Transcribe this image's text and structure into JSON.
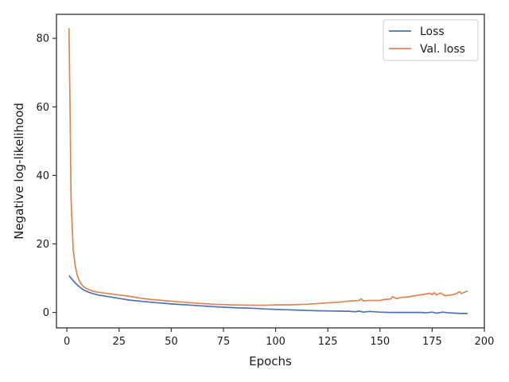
{
  "chart_data": {
    "type": "line",
    "title": "",
    "xlabel": "Epochs",
    "ylabel": "Negative log-likelihood",
    "xlim": [
      -5,
      200
    ],
    "ylim": [
      -4.5,
      87
    ],
    "xticks": [
      0,
      25,
      50,
      75,
      100,
      125,
      150,
      175,
      200
    ],
    "yticks": [
      0,
      20,
      40,
      60,
      80
    ],
    "grid": false,
    "legend_position": "top-right",
    "series": [
      {
        "name": "Loss",
        "color": "#4c72b0",
        "x": [
          1,
          2,
          3,
          4,
          5,
          6,
          7,
          8,
          10,
          12,
          15,
          20,
          25,
          30,
          40,
          50,
          60,
          70,
          80,
          90,
          95,
          100,
          105,
          110,
          115,
          120,
          125,
          130,
          135,
          138,
          140,
          142,
          145,
          150,
          155,
          160,
          165,
          170,
          172,
          175,
          177,
          180,
          183,
          186,
          189,
          192
        ],
        "y": [
          10.8,
          10.0,
          9.3,
          8.6,
          8.0,
          7.5,
          7.0,
          6.6,
          6.0,
          5.6,
          5.1,
          4.6,
          4.1,
          3.6,
          3.0,
          2.5,
          2.1,
          1.7,
          1.4,
          1.2,
          1.0,
          0.9,
          0.8,
          0.7,
          0.6,
          0.5,
          0.45,
          0.4,
          0.35,
          0.2,
          0.4,
          0.1,
          0.3,
          0.1,
          0.0,
          0.0,
          0.0,
          0.0,
          -0.1,
          0.1,
          -0.2,
          0.1,
          -0.1,
          -0.2,
          -0.3,
          -0.3
        ]
      },
      {
        "name": "Val. loss",
        "color": "#dd8452",
        "x": [
          1,
          1.5,
          2,
          3,
          4,
          5,
          6,
          7,
          8,
          10,
          12,
          15,
          20,
          25,
          30,
          35,
          40,
          50,
          60,
          70,
          80,
          90,
          95,
          100,
          105,
          110,
          115,
          120,
          125,
          130,
          135,
          140,
          141,
          142,
          145,
          150,
          152,
          155,
          156,
          158,
          160,
          163,
          165,
          168,
          170,
          172,
          174,
          175,
          176,
          177,
          179,
          181,
          183,
          185,
          187,
          188,
          189,
          192
        ],
        "y": [
          83,
          60,
          33,
          18.5,
          13.5,
          10.8,
          9.2,
          8.2,
          7.5,
          6.8,
          6.3,
          5.9,
          5.5,
          5.1,
          4.7,
          4.2,
          3.8,
          3.3,
          2.8,
          2.4,
          2.2,
          2.1,
          2.1,
          2.2,
          2.2,
          2.3,
          2.4,
          2.6,
          2.8,
          3.0,
          3.3,
          3.5,
          4.0,
          3.4,
          3.5,
          3.5,
          3.8,
          3.9,
          4.6,
          4.0,
          4.4,
          4.5,
          4.7,
          5.0,
          5.2,
          5.4,
          5.6,
          5.2,
          5.8,
          5.1,
          5.7,
          4.9,
          5.0,
          5.2,
          5.6,
          6.1,
          5.5,
          6.3
        ]
      }
    ]
  }
}
